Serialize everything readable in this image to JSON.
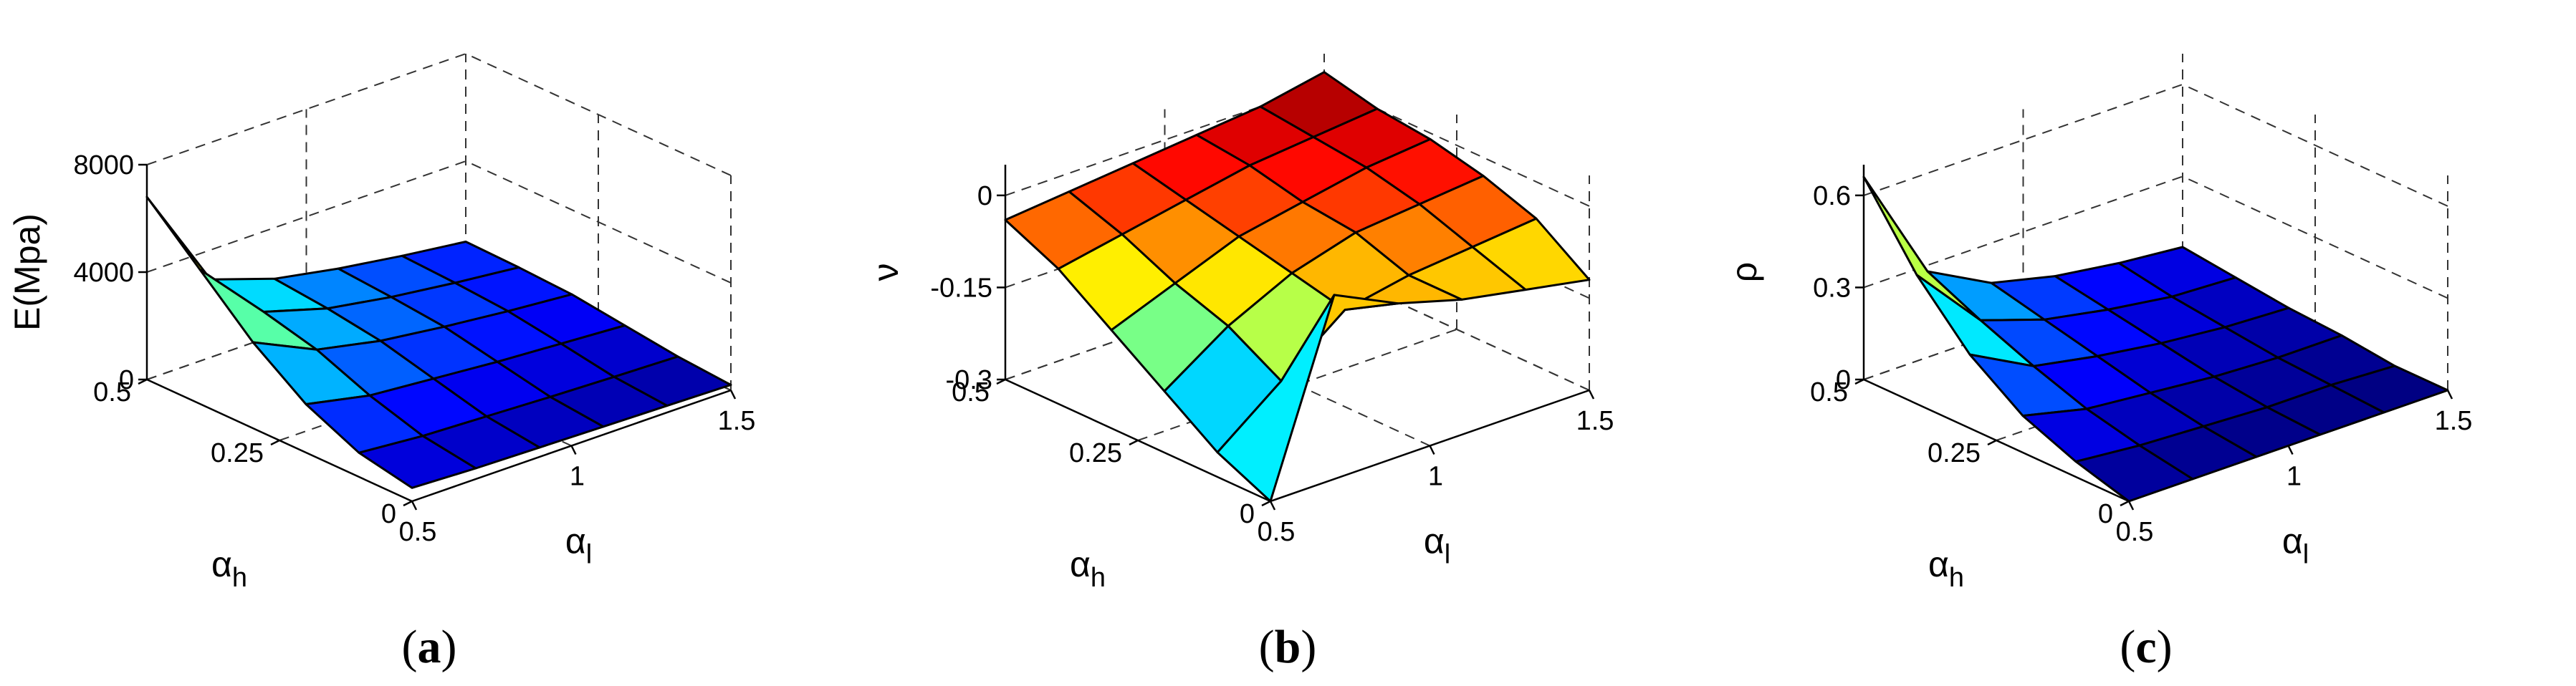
{
  "figure": {
    "panel_a": {
      "caption_open": "(",
      "caption_letter": "a",
      "caption_close": ")"
    },
    "panel_b": {
      "caption_open": "(",
      "caption_letter": "b",
      "caption_close": ")"
    },
    "panel_c": {
      "caption_open": "(",
      "caption_letter": "c",
      "caption_close": ")"
    }
  },
  "chart_data": [
    {
      "type": "surface",
      "panel": "a",
      "zlabel": "E(Mpa)",
      "xlabel": "α_l",
      "ylabel": "α_h",
      "xlabel_main": "α",
      "xlabel_sub": "l",
      "ylabel_main": "α",
      "ylabel_sub": "h",
      "xlim": [
        0.5,
        1.5
      ],
      "ylim": [
        0,
        0.5
      ],
      "zlim": [
        0,
        8000
      ],
      "x_ticks": [
        "0.5",
        "1",
        "1.5"
      ],
      "y_ticks": [
        "0",
        "0.25",
        "0.5"
      ],
      "z_ticks": [
        "0",
        "4000",
        "8000"
      ],
      "x": [
        0.5,
        0.7,
        0.9,
        1.1,
        1.3,
        1.5
      ],
      "y": [
        0.0,
        0.1,
        0.2,
        0.3,
        0.4,
        0.5
      ],
      "z": [
        [
          500,
          400,
          350,
          300,
          250,
          200
        ],
        [
          900,
          700,
          600,
          500,
          420,
          350
        ],
        [
          1800,
          1300,
          1100,
          900,
          750,
          600
        ],
        [
          3200,
          2100,
          1600,
          1300,
          1050,
          850
        ],
        [
          5000,
          2600,
          1900,
          1500,
          1200,
          950
        ],
        [
          6800,
          2900,
          2100,
          1650,
          1300,
          1000
        ]
      ],
      "clim": [
        0,
        7000
      ],
      "colormap": "jet",
      "grid": true,
      "edge_color": "#000000"
    },
    {
      "type": "surface",
      "panel": "b",
      "zlabel": "ν",
      "xlabel": "α_l",
      "ylabel": "α_h",
      "xlabel_main": "α",
      "xlabel_sub": "l",
      "ylabel_main": "α",
      "ylabel_sub": "h",
      "xlim": [
        0.5,
        1.5
      ],
      "ylim": [
        0,
        0.5
      ],
      "zlim": [
        -0.3,
        0.05
      ],
      "x_ticks": [
        "0.5",
        "1",
        "1.5"
      ],
      "y_ticks": [
        "0",
        "0.25",
        "0.5"
      ],
      "z_ticks": [
        "-0.3",
        "-0.15",
        "0"
      ],
      "x": [
        0.5,
        0.7,
        0.9,
        1.1,
        1.3,
        1.5
      ],
      "y": [
        0.0,
        0.1,
        0.2,
        0.3,
        0.4,
        0.5
      ],
      "z": [
        [
          -0.3,
          0.0,
          -0.05,
          -0.08,
          -0.1,
          -0.12
        ],
        [
          -0.26,
          -0.18,
          -0.1,
          -0.08,
          -0.07,
          -0.06
        ],
        [
          -0.2,
          -0.13,
          -0.08,
          -0.05,
          -0.04,
          -0.03
        ],
        [
          -0.14,
          -0.1,
          -0.06,
          -0.04,
          -0.02,
          -0.01
        ],
        [
          -0.08,
          -0.06,
          -0.04,
          -0.02,
          -0.01,
          0.0
        ],
        [
          -0.04,
          -0.03,
          -0.02,
          -0.01,
          0.0,
          0.02
        ]
      ],
      "clim": [
        -0.3,
        0.02
      ],
      "colormap": "jet",
      "grid": true,
      "edge_color": "#000000"
    },
    {
      "type": "surface",
      "panel": "c",
      "zlabel": "ρ",
      "xlabel": "α_l",
      "ylabel": "α_h",
      "xlabel_main": "α",
      "xlabel_sub": "l",
      "ylabel_main": "α",
      "ylabel_sub": "h",
      "xlim": [
        0.5,
        1.5
      ],
      "ylim": [
        0,
        0.5
      ],
      "zlim": [
        0,
        0.7
      ],
      "x_ticks": [
        "0.5",
        "1",
        "1.5"
      ],
      "y_ticks": [
        "0",
        "0.25",
        "0.5"
      ],
      "z_ticks": [
        "0",
        "0.3",
        "0.6"
      ],
      "x": [
        0.5,
        0.7,
        0.9,
        1.1,
        1.3,
        1.5
      ],
      "y": [
        0.0,
        0.1,
        0.2,
        0.3,
        0.4,
        0.5
      ],
      "z": [
        [
          0.0,
          0.0,
          0.0,
          0.0,
          0.0,
          0.0
        ],
        [
          0.05,
          0.03,
          0.02,
          0.01,
          0.01,
          0.0
        ],
        [
          0.12,
          0.07,
          0.05,
          0.03,
          0.02,
          0.02
        ],
        [
          0.24,
          0.13,
          0.09,
          0.06,
          0.04,
          0.03
        ],
        [
          0.42,
          0.2,
          0.13,
          0.09,
          0.06,
          0.05
        ],
        [
          0.66,
          0.28,
          0.17,
          0.12,
          0.09,
          0.07
        ]
      ],
      "clim": [
        0,
        0.7
      ],
      "colormap": "jet",
      "grid": true,
      "edge_color": "#000000"
    }
  ]
}
